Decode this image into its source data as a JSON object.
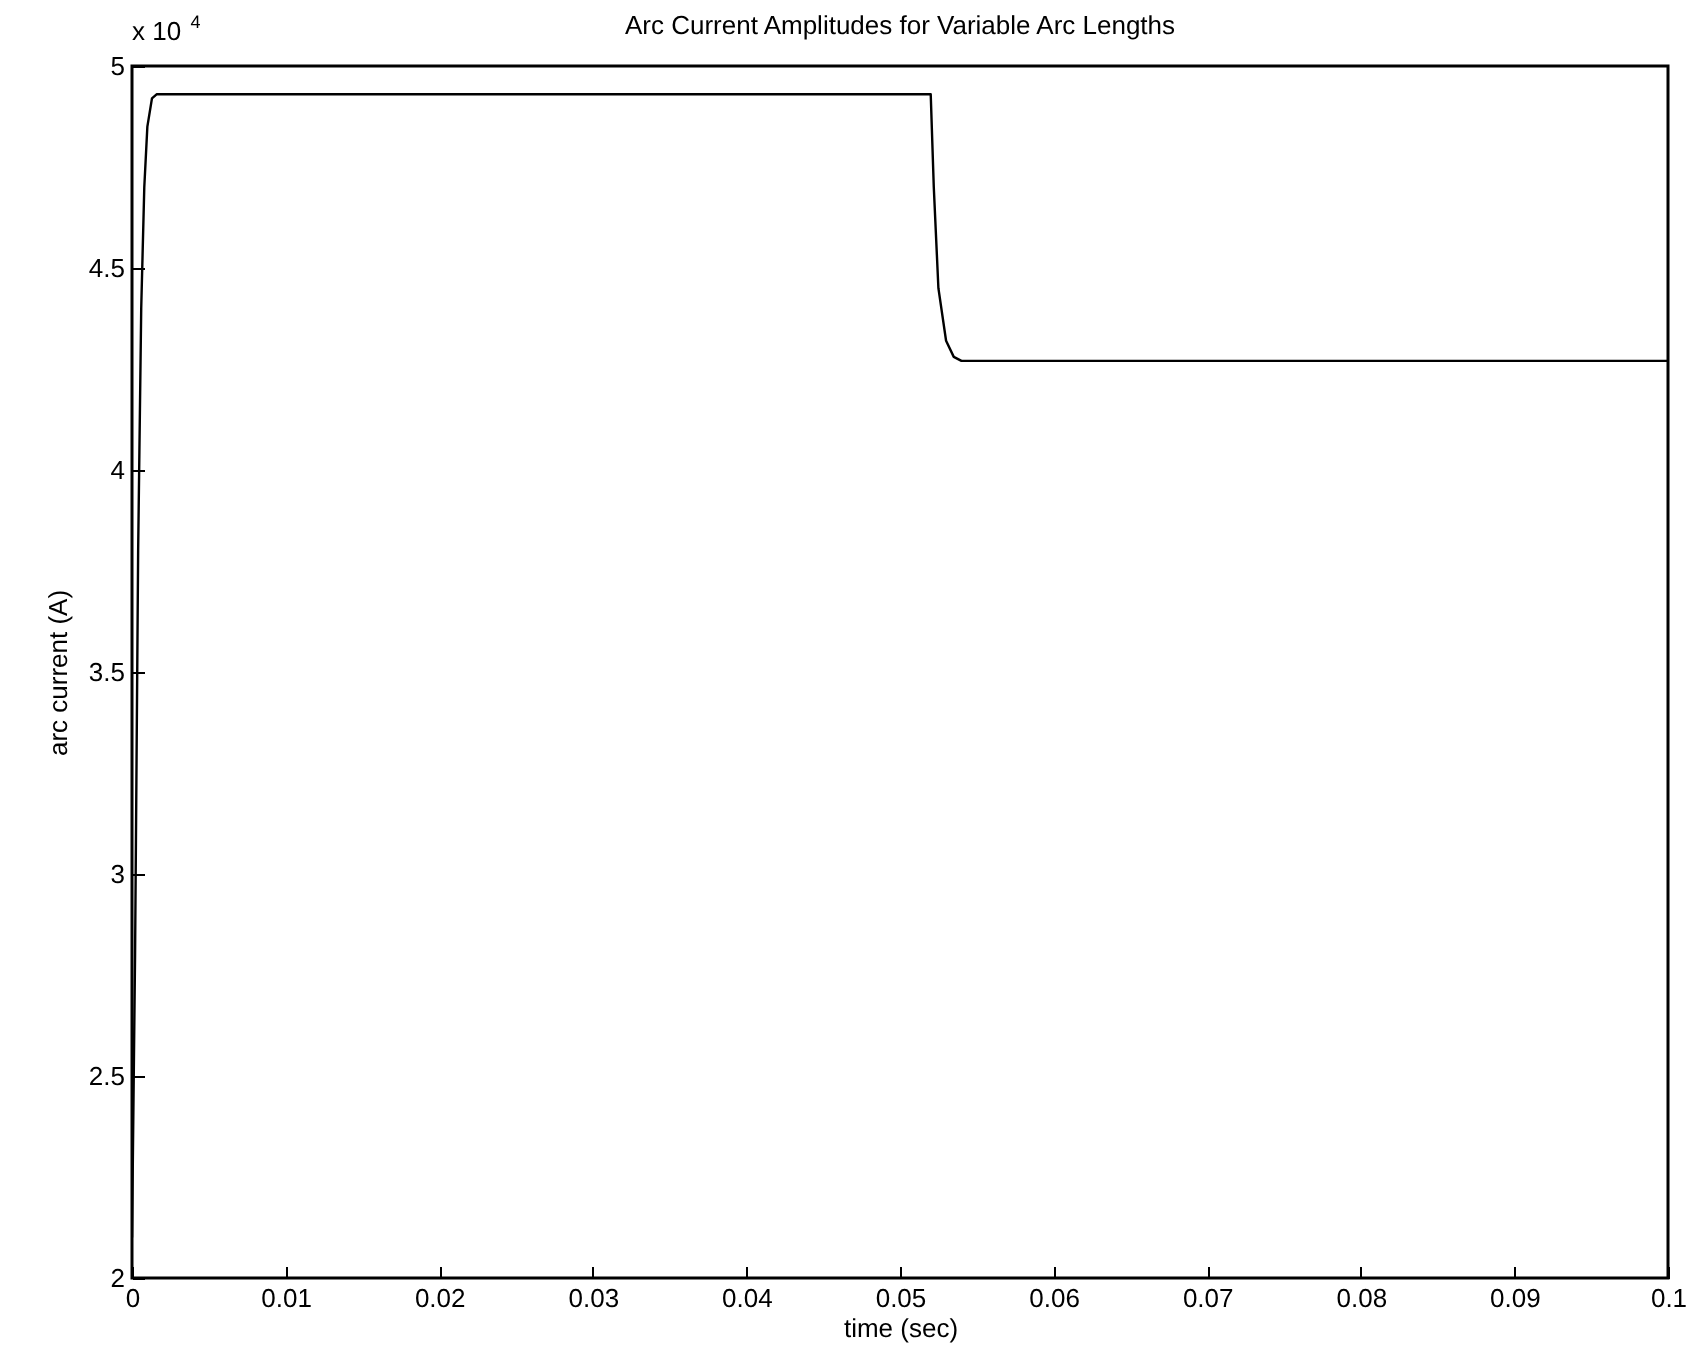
{
  "chart_data": {
    "type": "line",
    "title": "Arc Current Amplitudes for Variable Arc Lengths",
    "xlabel": "time (sec)",
    "ylabel": "arc current (A)",
    "annotations": [
      "x 10$^{4}$"
    ],
    "x": [
      0,
      0.0002,
      0.0004,
      0.0006,
      0.0008,
      0.001,
      0.0013,
      0.0016,
      0.002,
      0.052,
      0.0522,
      0.0525,
      0.053,
      0.0535,
      0.054,
      0.1
    ],
    "series": [
      {
        "color": "#000000",
        "values": [
          2.1,
          2.8,
          3.8,
          4.4,
          4.7,
          4.85,
          4.92,
          4.93,
          4.93,
          4.93,
          4.7,
          4.45,
          4.32,
          4.28,
          4.27,
          4.27
        ]
      }
    ],
    "xlim": [
      0,
      0.1
    ],
    "xticks": [
      0,
      0.01,
      0.02,
      0.03,
      0.04,
      0.05,
      0.06,
      0.07,
      0.08,
      0.09,
      0.1
    ],
    "ylim": [
      2,
      5
    ],
    "yticks": [
      2,
      2.5,
      3,
      3.5,
      4,
      4.5,
      5
    ],
    "grid": false,
    "marker": "none",
    "line_style": "solid"
  }
}
